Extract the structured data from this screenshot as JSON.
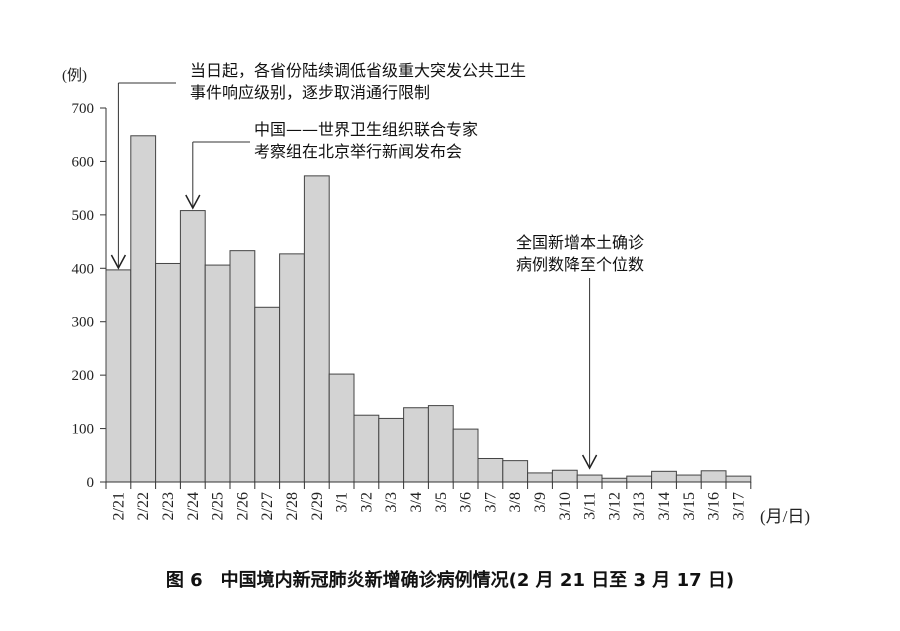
{
  "chart_data": {
    "type": "bar",
    "title": "图 6　中国境内新冠肺炎新增确诊病例情况(2 月 21 日至 3 月 17 日)",
    "ylabel": "(例)",
    "xlabel": "(月/日)",
    "ylim": [
      0,
      700
    ],
    "yticks": [
      0,
      100,
      200,
      300,
      400,
      500,
      600,
      700
    ],
    "grid": false,
    "bar_color": "#d3d3d3",
    "categories": [
      "2/21",
      "2/22",
      "2/23",
      "2/24",
      "2/25",
      "2/26",
      "2/27",
      "2/28",
      "2/29",
      "3/1",
      "3/2",
      "3/3",
      "3/4",
      "3/5",
      "3/6",
      "3/7",
      "3/8",
      "3/9",
      "3/10",
      "3/11",
      "3/12",
      "3/13",
      "3/14",
      "3/15",
      "3/16",
      "3/17"
    ],
    "values": [
      397,
      648,
      409,
      508,
      406,
      433,
      327,
      427,
      573,
      202,
      125,
      119,
      139,
      143,
      99,
      44,
      40,
      17,
      22,
      13,
      7,
      11,
      20,
      13,
      21,
      11
    ],
    "annotations": [
      {
        "category": "2/21",
        "lines": [
          "当日起，各省份陆续调低省级重大突发公共卫生",
          "事件响应级别，逐步取消通行限制"
        ]
      },
      {
        "category": "2/24",
        "lines": [
          "中国——世界卫生组织联合专家",
          "考察组在北京举行新闻发布会"
        ]
      },
      {
        "category": "3/11",
        "lines": [
          "全国新增本土确诊",
          "病例数降至个位数"
        ]
      }
    ]
  }
}
